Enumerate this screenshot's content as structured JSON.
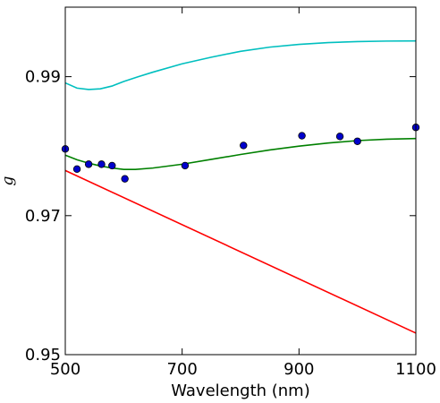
{
  "chart_data": {
    "type": "line",
    "xlabel": "Wavelength (nm)",
    "ylabel": "g",
    "xlim": [
      500,
      1100
    ],
    "ylim": [
      0.95,
      1.0
    ],
    "x_ticks": [
      500,
      700,
      900,
      1100
    ],
    "y_ticks": [
      0.95,
      0.97,
      0.99
    ],
    "x_tick_labels": [
      "500",
      "700",
      "900",
      "1100"
    ],
    "y_tick_labels": [
      "0.95",
      "0.97",
      "0.99"
    ],
    "grid": false,
    "series": [
      {
        "type": "line",
        "color": "#00bfbf",
        "points": [
          [
            500,
            0.9891
          ],
          [
            520,
            0.98835
          ],
          [
            540,
            0.98815
          ],
          [
            560,
            0.98825
          ],
          [
            580,
            0.98865
          ],
          [
            600,
            0.9893
          ],
          [
            625,
            0.99
          ],
          [
            650,
            0.99065
          ],
          [
            700,
            0.99185
          ],
          [
            750,
            0.9928
          ],
          [
            800,
            0.99365
          ],
          [
            850,
            0.99425
          ],
          [
            900,
            0.99465
          ],
          [
            950,
            0.9949
          ],
          [
            1000,
            0.99505
          ],
          [
            1050,
            0.99512
          ],
          [
            1100,
            0.99515
          ]
        ]
      },
      {
        "type": "line",
        "color": "#008000",
        "points": [
          [
            500,
            0.9787
          ],
          [
            520,
            0.97805
          ],
          [
            540,
            0.97755
          ],
          [
            560,
            0.97715
          ],
          [
            580,
            0.97685
          ],
          [
            600,
            0.97665
          ],
          [
            620,
            0.97665
          ],
          [
            650,
            0.97685
          ],
          [
            700,
            0.9774
          ],
          [
            750,
            0.9781
          ],
          [
            800,
            0.9788
          ],
          [
            850,
            0.97945
          ],
          [
            900,
            0.98
          ],
          [
            950,
            0.98045
          ],
          [
            1000,
            0.9808
          ],
          [
            1050,
            0.981
          ],
          [
            1100,
            0.9811
          ]
        ]
      },
      {
        "type": "line",
        "color": "#ff0000",
        "points": [
          [
            500,
            0.9765
          ],
          [
            1100,
            0.9531
          ]
        ]
      },
      {
        "type": "scatter",
        "color": "#0000cc",
        "points": [
          [
            500,
            0.9796
          ],
          [
            520,
            0.9767
          ],
          [
            540,
            0.9774
          ],
          [
            562,
            0.9774
          ],
          [
            580,
            0.9772
          ],
          [
            602,
            0.9753
          ],
          [
            705,
            0.9772
          ],
          [
            805,
            0.9801
          ],
          [
            905,
            0.9815
          ],
          [
            970,
            0.9814
          ],
          [
            1000,
            0.9807
          ],
          [
            1100,
            0.9827
          ]
        ]
      }
    ]
  }
}
